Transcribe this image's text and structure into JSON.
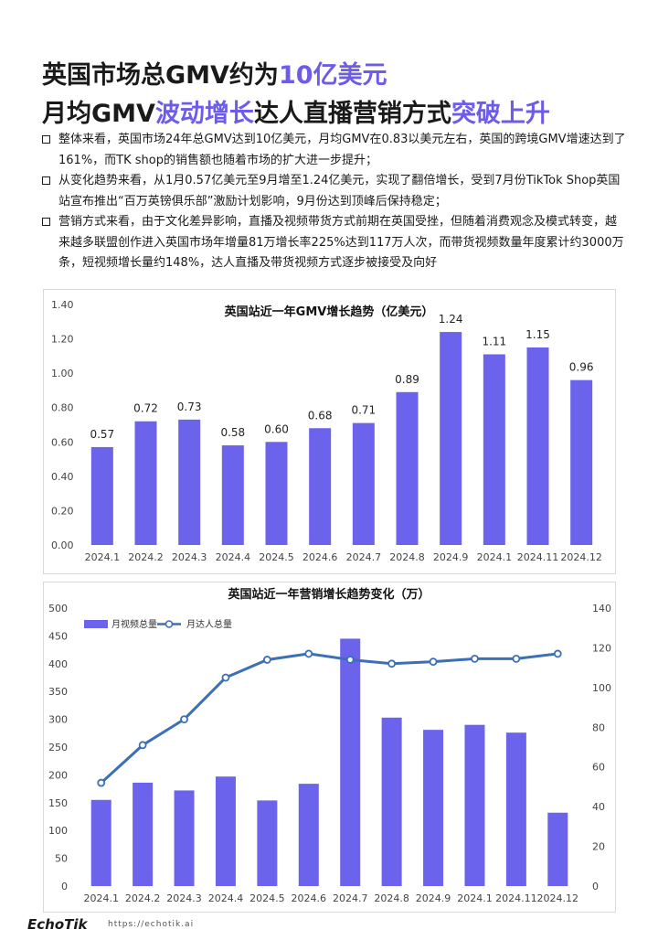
{
  "header": {
    "line1": {
      "text": "英国市场总GMV约为",
      "highlight": "10亿美元"
    },
    "line2": [
      {
        "text": "月均GMV",
        "hl": false
      },
      {
        "text": "波动增长",
        "hl": true
      },
      {
        "text": "达人直播营销方式",
        "hl": false
      },
      {
        "text": "突破上升",
        "hl": true
      }
    ]
  },
  "bullets": [
    "整体来看，英国市场24年总GMV达到10亿美元，月均GMV在0.83以美元左右，英国的跨境GMV增速达到了161%，而TK shop的销售额也随着市场的扩大进一步提升；",
    "从变化趋势来看，从1月0.57亿美元至9月增至1.24亿美元，实现了翻倍增长，受到7月份TikTok Shop英国站宣布推出“百万英镑俱乐部”激励计划影响，9月份达到顶峰后保持稳定；",
    "营销方式来看，由于文化差异影响，直播及视频带货方式前期在英国受挫，但随着消费观念及模式转变，越来越多联盟创作进入英国市场年增量81万增长率225%达到117万人次，而带货视频数量年度累计约3000万条，短视频增长量约148%，达人直播及带货视频方式逐步被接受及向好"
  ],
  "colors": {
    "accent": "#6c5ce7",
    "bar": "#6c63ec",
    "line": "#3b6fb6"
  },
  "chart_data": [
    {
      "type": "bar",
      "title": "英国站近一年GMV增长趋势（亿美元）",
      "categories": [
        "2024.1",
        "2024.2",
        "2024.3",
        "2024.4",
        "2024.5",
        "2024.6",
        "2024.7",
        "2024.8",
        "2024.9",
        "2024.1",
        "2024.11",
        "2024.12"
      ],
      "values": [
        0.57,
        0.72,
        0.73,
        0.58,
        0.6,
        0.68,
        0.71,
        0.89,
        1.24,
        1.11,
        1.15,
        0.96
      ],
      "value_labels": [
        "0.57",
        "0.72",
        "0.73",
        "0.58",
        "0.60",
        "0.68",
        "0.71",
        "0.89",
        "1.24",
        "1.11",
        "1.15",
        "0.96"
      ],
      "yticks": [
        "0.00",
        "0.20",
        "0.40",
        "0.60",
        "0.80",
        "1.00",
        "1.20",
        "1.40"
      ],
      "ylim": [
        0,
        1.4
      ],
      "grid": false
    },
    {
      "type": "bar+line",
      "title": "英国站近一年营销增长趋势变化（万）",
      "categories": [
        "2024.1",
        "2024.2",
        "2024.3",
        "2024.4",
        "2024.5",
        "2024.6",
        "2024.7",
        "2024.8",
        "2024.9",
        "2024.1",
        "2024.11",
        "2024.12"
      ],
      "series": [
        {
          "name": "月视频总量",
          "kind": "bar",
          "axis": "left",
          "values": [
            155,
            186,
            172,
            197,
            154,
            184,
            445,
            303,
            281,
            290,
            276,
            132
          ]
        },
        {
          "name": "月达人总量",
          "kind": "line",
          "axis": "right",
          "values": [
            52,
            71,
            84,
            105,
            114,
            117,
            114,
            112,
            113,
            114.5,
            114.5,
            117
          ]
        }
      ],
      "yticks_left": [
        "0",
        "50",
        "100",
        "150",
        "200",
        "250",
        "300",
        "350",
        "400",
        "450",
        "500"
      ],
      "yticks_right": [
        "0",
        "20",
        "40",
        "60",
        "80",
        "100",
        "120",
        "140"
      ],
      "ylim_left": [
        0,
        500
      ],
      "ylim_right": [
        0,
        140
      ],
      "legend": "top-left",
      "grid": false
    }
  ],
  "footer": {
    "logo": "EchoTik",
    "logo_sub": "",
    "url": "https://echotik.ai"
  }
}
